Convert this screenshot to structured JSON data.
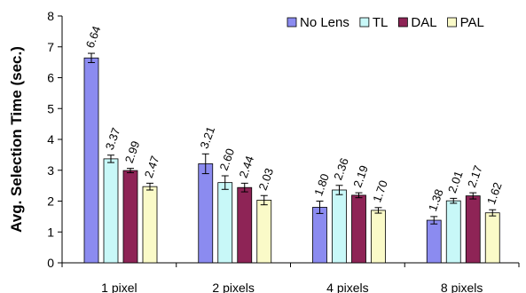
{
  "chart_data": {
    "type": "bar",
    "title": "",
    "xlabel": "",
    "ylabel": "Avg. Selection Time (sec.)",
    "ylim": [
      0,
      8
    ],
    "yticks": [
      "0",
      "1",
      "2",
      "3",
      "4",
      "5",
      "6",
      "7",
      "8"
    ],
    "grid": false,
    "legend_position": "top-right",
    "categories": [
      "1 pixel",
      "2 pixels",
      "4 pixels",
      "8 pixels"
    ],
    "series": [
      {
        "name": "No Lens",
        "color": "#8b8bf0",
        "values": [
          6.64,
          3.21,
          1.8,
          1.38
        ],
        "labels": [
          "6.64",
          "3.21",
          "1.80",
          "1.38"
        ],
        "error": [
          0.15,
          0.32,
          0.2,
          0.12
        ]
      },
      {
        "name": "TL",
        "color": "#c8f8f8",
        "values": [
          3.37,
          2.6,
          2.36,
          2.01
        ],
        "labels": [
          "3.37",
          "2.60",
          "2.36",
          "2.01"
        ],
        "error": [
          0.12,
          0.22,
          0.15,
          0.08
        ]
      },
      {
        "name": "DAL",
        "color": "#8e2456",
        "values": [
          2.99,
          2.44,
          2.19,
          2.17
        ],
        "labels": [
          "2.99",
          "2.44",
          "2.19",
          "2.17"
        ],
        "error": [
          0.07,
          0.14,
          0.08,
          0.1
        ]
      },
      {
        "name": "PAL",
        "color": "#fafac8",
        "values": [
          2.47,
          2.03,
          1.7,
          1.62
        ],
        "labels": [
          "2.47",
          "2.03",
          "1.70",
          "1.62"
        ],
        "error": [
          0.11,
          0.15,
          0.09,
          0.1
        ]
      }
    ]
  }
}
